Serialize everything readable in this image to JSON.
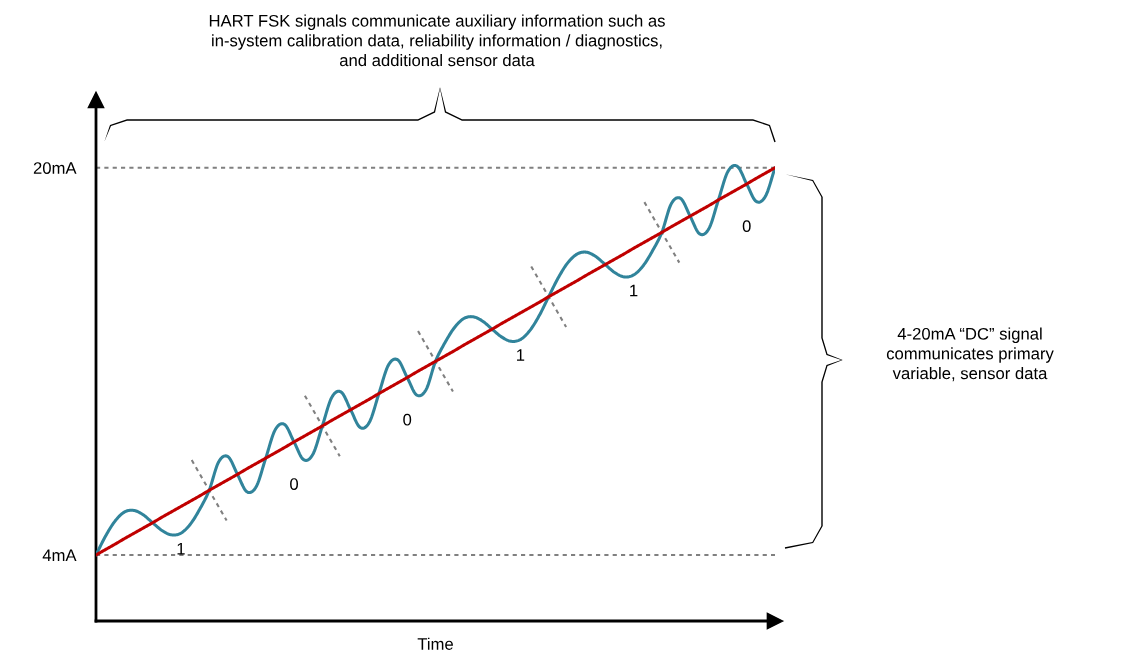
{
  "chart_data": {
    "type": "line",
    "xlabel": "Time",
    "tick_labels": "y",
    "grid": false,
    "legend": false,
    "marker": "none",
    "line_style": "solid",
    "categories": [
      null,
      null,
      null,
      null,
      null,
      null,
      null,
      null,
      null,
      null,
      null,
      null,
      null,
      null,
      null,
      null,
      null,
      null,
      null,
      null,
      null,
      null,
      null,
      null,
      null,
      null,
      null,
      null,
      null,
      null,
      null,
      null,
      null,
      null,
      null,
      null,
      null,
      null,
      null,
      null,
      null,
      null,
      null,
      null,
      null,
      null,
      null,
      null,
      null,
      null,
      null,
      null,
      null,
      null,
      null,
      null,
      null,
      null,
      null,
      null,
      null,
      null,
      null,
      null,
      null,
      null,
      null,
      null,
      null,
      null,
      null,
      null,
      null
    ],
    "series": [
      {
        "color": "#c00000",
        "values": [
          4.0,
          4.22,
          4.44,
          4.67,
          4.89,
          5.11,
          5.33,
          5.56,
          5.78,
          6.0,
          6.22,
          6.44,
          6.67,
          6.89,
          7.11,
          7.33,
          7.56,
          7.78,
          8.0,
          8.22,
          8.44,
          8.67,
          8.89,
          9.11,
          9.33,
          9.56,
          9.78,
          10.0,
          10.22,
          10.44,
          10.67,
          10.89,
          11.11,
          11.33,
          11.56,
          11.78,
          12.0,
          12.22,
          12.44,
          12.67,
          12.89,
          13.11,
          13.33,
          13.56,
          13.78,
          14.0,
          14.22,
          14.44,
          14.67,
          14.89,
          15.11,
          15.33,
          15.56,
          15.78,
          16.0,
          16.22,
          16.44,
          16.67,
          16.89,
          17.11,
          17.33,
          17.56,
          17.78,
          18.0,
          18.22,
          18.44,
          18.67,
          18.89,
          19.11,
          19.33,
          19.56,
          19.78,
          20.0
        ]
      },
      {
        "color": "#31849b",
        "values": [
          4.0,
          4.77,
          5.39,
          5.77,
          5.84,
          5.66,
          5.33,
          5.01,
          4.83,
          4.9,
          5.27,
          5.89,
          6.67,
          7.84,
          8.06,
          7.33,
          6.61,
          6.83,
          8.0,
          9.17,
          9.39,
          8.67,
          7.94,
          8.16,
          9.33,
          10.51,
          10.73,
          10.0,
          9.27,
          9.49,
          10.67,
          11.84,
          12.06,
          11.33,
          10.61,
          10.83,
          12.0,
          12.77,
          13.39,
          13.77,
          13.84,
          13.66,
          13.33,
          13.01,
          12.83,
          12.9,
          13.27,
          13.89,
          14.67,
          15.44,
          16.06,
          16.43,
          16.51,
          16.33,
          16.0,
          15.67,
          15.49,
          15.57,
          15.94,
          16.56,
          17.33,
          18.51,
          18.73,
          18.0,
          17.27,
          17.49,
          18.67,
          19.84,
          20.06,
          19.33,
          18.61,
          18.83,
          20.0
        ]
      }
    ],
    "ylim": [
      1.27,
      22.8
    ],
    "yticks": [
      {
        "value": 4,
        "label": "4mA"
      },
      {
        "value": 20,
        "label": "20mA"
      }
    ],
    "ref_lines": [
      {
        "axis": "y",
        "value": 4,
        "color": "#808080",
        "line_style": "dotted"
      },
      {
        "axis": "y",
        "value": 20,
        "color": "#808080",
        "line_style": "dotted"
      }
    ],
    "annotations": [
      "HART FSK signals communicate auxiliary information such as\nin-system calibration data, reliability information / diagnostics,\nand additional sensor data",
      "4-20mA “DC” signal\ncommunicates primary\nvariable, sensor data",
      "1",
      "0",
      "0",
      "1",
      "1",
      "0"
    ]
  }
}
